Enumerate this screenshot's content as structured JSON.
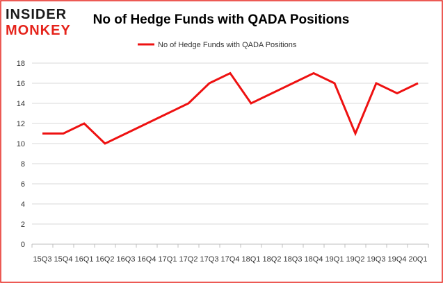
{
  "logo": {
    "top": "INSIDER",
    "bottom": "MONKEY"
  },
  "colors": {
    "series": "#ee1111",
    "frame": "#e5231b",
    "grid": "#d9d9d9"
  },
  "chart_data": {
    "type": "line",
    "title": "No of Hedge Funds with QADA Positions",
    "legend": "top-center",
    "grid": true,
    "categories": [
      "15Q3",
      "15Q4",
      "16Q1",
      "16Q2",
      "16Q3",
      "16Q4",
      "17Q1",
      "17Q2",
      "17Q3",
      "17Q4",
      "18Q1",
      "18Q2",
      "18Q3",
      "18Q4",
      "19Q1",
      "19Q2",
      "19Q3",
      "19Q4",
      "20Q1"
    ],
    "series": [
      {
        "name": "No of Hedge Funds with QADA Positions",
        "values": [
          11,
          11,
          12,
          10,
          11,
          12,
          13,
          14,
          16,
          17,
          14,
          15,
          16,
          17,
          16,
          11,
          16,
          15,
          16
        ]
      }
    ],
    "ylim": [
      0,
      18
    ],
    "yticks": [
      0,
      2,
      4,
      6,
      8,
      10,
      12,
      14,
      16,
      18
    ],
    "xlabel": "",
    "ylabel": ""
  }
}
